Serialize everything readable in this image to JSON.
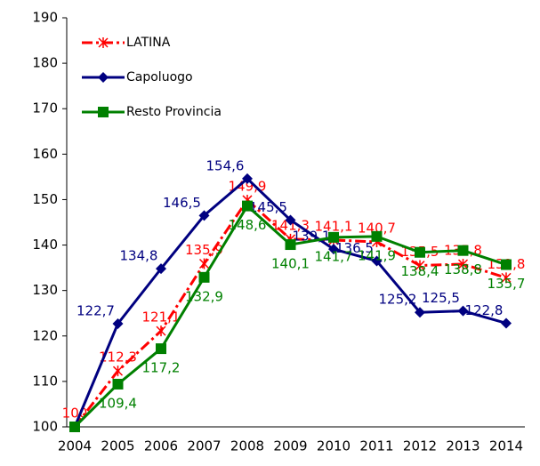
{
  "chart_data": {
    "type": "line",
    "categories": [
      "2004",
      "2005",
      "2006",
      "2007",
      "2008",
      "2009",
      "2010",
      "2011",
      "2012",
      "2013",
      "2014"
    ],
    "series": [
      {
        "name": "LATINA",
        "color": "#ff0000",
        "dash": "dashdot",
        "marker": "star",
        "values": [
          100,
          112.3,
          121.1,
          135.9,
          149.9,
          141.3,
          141.1,
          140.7,
          135.5,
          135.8,
          132.8
        ],
        "value_labels": [
          "100",
          "112,3",
          "121,1",
          "135,9",
          "149,9",
          "141,3",
          "141,1",
          "140,7",
          "135,5",
          "135,8",
          "132,8"
        ]
      },
      {
        "name": "Capoluogo",
        "color": "#000080",
        "dash": "solid",
        "marker": "diamond",
        "values": [
          100,
          122.7,
          134.8,
          146.5,
          154.6,
          145.5,
          139.1,
          136.5,
          125.2,
          125.5,
          122.8
        ],
        "value_labels": [
          null,
          "122,7",
          "134,8",
          "146,5",
          "154,6",
          "145,5",
          "139,1",
          "136,5",
          "125,2",
          "125,5",
          "122,8"
        ]
      },
      {
        "name": "Resto Provincia",
        "color": "#008000",
        "dash": "solid",
        "marker": "square",
        "values": [
          100,
          109.4,
          117.2,
          132.9,
          148.6,
          140.1,
          141.7,
          141.9,
          138.4,
          138.8,
          135.7
        ],
        "value_labels": [
          null,
          "109,4",
          "117,2",
          "132,9",
          "148,6",
          "140,1",
          "141,7",
          "141,9",
          "138,4",
          "138,8",
          "135,7"
        ]
      }
    ],
    "ylim": [
      100,
      190
    ],
    "yticks": [
      100,
      110,
      120,
      130,
      140,
      150,
      160,
      170,
      180,
      190
    ],
    "legend": "upper left"
  }
}
